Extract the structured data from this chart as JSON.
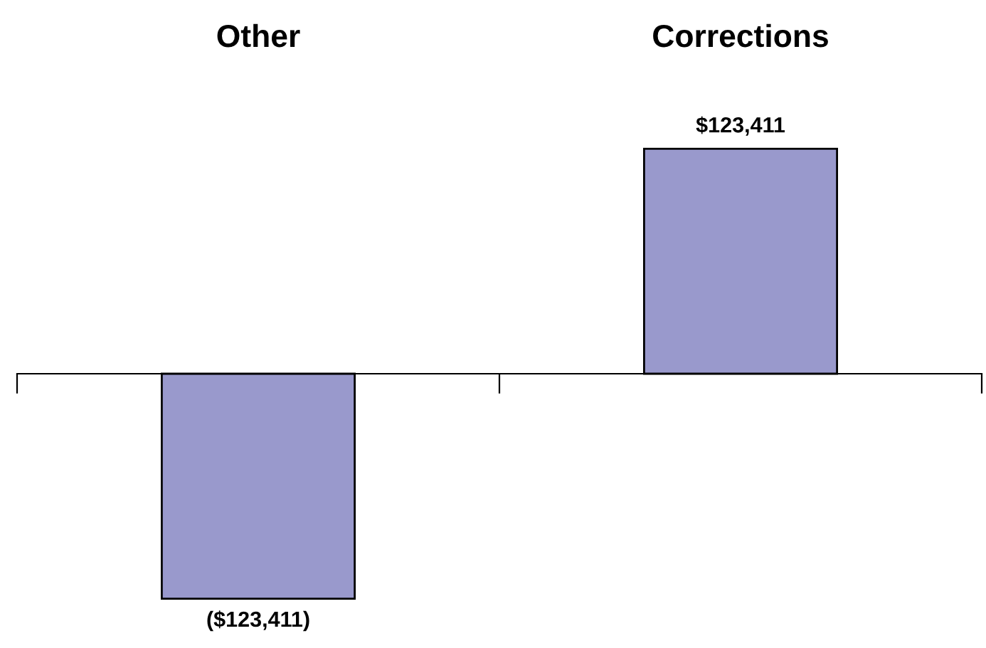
{
  "chart_data": {
    "type": "bar",
    "categories": [
      "Other",
      "Corrections"
    ],
    "values": [
      -123411,
      123411
    ],
    "value_labels": [
      "($123,411)",
      "$123,411"
    ],
    "color": "#9999cc",
    "grid": false,
    "legend": false
  }
}
